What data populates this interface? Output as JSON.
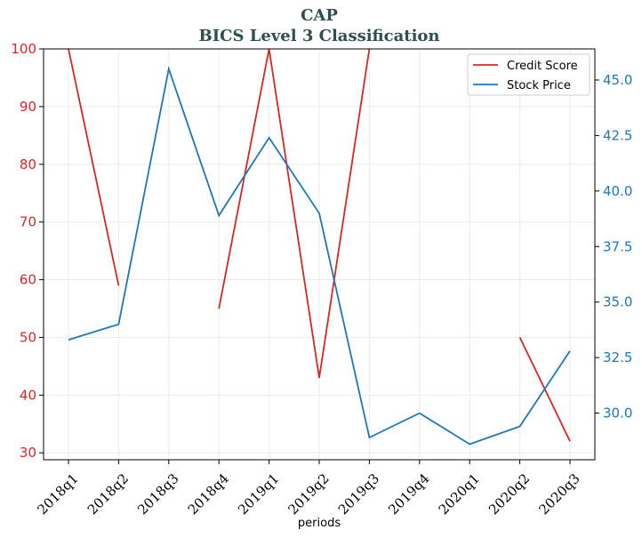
{
  "chart_data": {
    "type": "line",
    "title": "CAP",
    "subtitle": "BICS Level 3 Classification",
    "xlabel": "periods",
    "categories": [
      "2018q1",
      "2018q2",
      "2018q3",
      "2018q4",
      "2019q1",
      "2019q2",
      "2019q3",
      "2019q4",
      "2020q1",
      "2020q2",
      "2020q3"
    ],
    "y_left": {
      "lim": [
        28.8,
        100
      ],
      "ticks": [
        30,
        40,
        50,
        60,
        70,
        80,
        90,
        100
      ],
      "color": "#d62728"
    },
    "y_right": {
      "lim": [
        27.9,
        46.4
      ],
      "ticks": [
        30.0,
        32.5,
        35.0,
        37.5,
        40.0,
        42.5,
        45.0
      ],
      "color": "#1f77b4"
    },
    "series": [
      {
        "name": "Credit Score",
        "axis": "left",
        "color": "#d62728",
        "values": [
          100,
          59,
          null,
          55,
          100,
          43,
          100,
          null,
          null,
          50,
          32
        ]
      },
      {
        "name": "Stock Price",
        "axis": "right",
        "color": "#1f77b4",
        "values": [
          33.3,
          34.0,
          45.5,
          38.9,
          42.4,
          39.0,
          28.9,
          30.0,
          28.6,
          29.4,
          32.8
        ]
      }
    ],
    "grid": true,
    "legend_position": "top-right"
  }
}
